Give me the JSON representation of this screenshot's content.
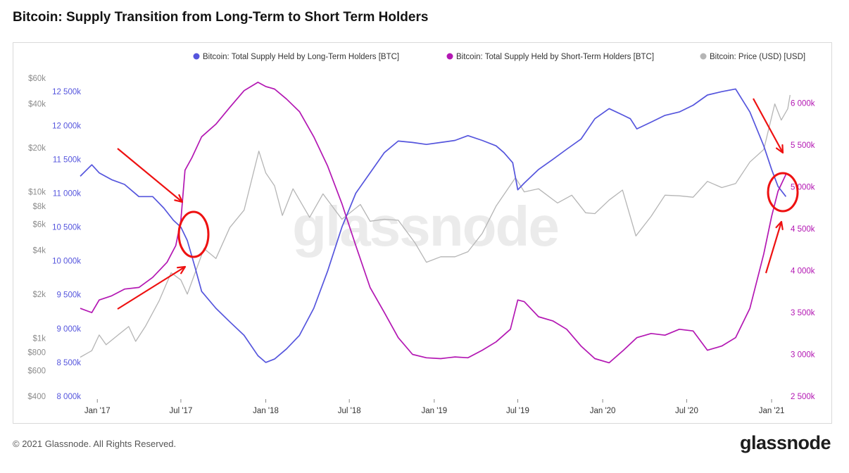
{
  "title": "Bitcoin: Supply Transition from Long-Term to Short Term Holders",
  "footer": {
    "copyright": "© 2021 Glassnode. All Rights Reserved.",
    "brand": "glassnode",
    "watermark": "glassnode"
  },
  "colors": {
    "lth": "#5555dd",
    "sth": "#b317b3",
    "price": "#b5b5b5",
    "annotation": "#ee1111"
  },
  "chart_data": {
    "type": "line",
    "x_ticks": [
      "Jan '17",
      "Jul '17",
      "Jan '18",
      "Jul '18",
      "Jan '19",
      "Jul '19",
      "Jan '20",
      "Jul '20",
      "Jan '21"
    ],
    "xlim": [
      "2016-11-25",
      "2021-02-05"
    ],
    "legend_position": "top-right",
    "grid": false,
    "axes": {
      "price": {
        "side": "left-outer",
        "scale": "log",
        "range": [
          400,
          60000
        ],
        "ticks": [
          400,
          600,
          800,
          1000,
          2000,
          4000,
          6000,
          8000,
          10000,
          20000,
          40000,
          60000
        ],
        "tick_labels": [
          "$400",
          "$600",
          "$800",
          "$1k",
          "$2k",
          "$4k",
          "$6k",
          "$8k",
          "$10k",
          "$20k",
          "$40k",
          "$60k"
        ]
      },
      "lth": {
        "side": "left-inner",
        "scale": "linear",
        "range": [
          8000000,
          12700000
        ],
        "ticks": [
          8000000,
          8500000,
          9000000,
          9500000,
          10000000,
          10500000,
          11000000,
          11500000,
          12000000,
          12500000
        ],
        "tick_labels": [
          "8 000k",
          "8 500k",
          "9 000k",
          "9 500k",
          "10 000k",
          "10 500k",
          "11 000k",
          "11 500k",
          "12 000k",
          "12 500k"
        ]
      },
      "sth": {
        "side": "right",
        "scale": "linear",
        "range": [
          2500000,
          6300000
        ],
        "ticks": [
          2500000,
          3000000,
          3500000,
          4000000,
          4500000,
          5000000,
          5500000,
          6000000
        ],
        "tick_labels": [
          "2 500k",
          "3 000k",
          "3 500k",
          "4 000k",
          "4 500k",
          "5 000k",
          "5 500k",
          "6 000k"
        ]
      }
    },
    "series": [
      {
        "name": "Bitcoin: Total Supply Held by Long-Term Holders [BTC]",
        "axis": "lth",
        "points": [
          [
            "2016-11-25",
            11250000
          ],
          [
            "2016-12-20",
            11420000
          ],
          [
            "2017-01-05",
            11300000
          ],
          [
            "2017-02-01",
            11200000
          ],
          [
            "2017-03-01",
            11130000
          ],
          [
            "2017-04-01",
            10950000
          ],
          [
            "2017-05-01",
            10950000
          ],
          [
            "2017-05-25",
            10780000
          ],
          [
            "2017-06-15",
            10600000
          ],
          [
            "2017-07-01",
            10500000
          ],
          [
            "2017-07-15",
            10300000
          ],
          [
            "2017-08-01",
            9900000
          ],
          [
            "2017-08-15",
            9550000
          ],
          [
            "2017-09-15",
            9300000
          ],
          [
            "2017-10-15",
            9100000
          ],
          [
            "2017-11-15",
            8900000
          ],
          [
            "2017-12-15",
            8600000
          ],
          [
            "2018-01-01",
            8500000
          ],
          [
            "2018-01-20",
            8550000
          ],
          [
            "2018-02-15",
            8700000
          ],
          [
            "2018-03-15",
            8900000
          ],
          [
            "2018-04-15",
            9300000
          ],
          [
            "2018-05-15",
            9850000
          ],
          [
            "2018-06-15",
            10500000
          ],
          [
            "2018-07-15",
            11000000
          ],
          [
            "2018-08-15",
            11300000
          ],
          [
            "2018-09-15",
            11600000
          ],
          [
            "2018-10-15",
            11770000
          ],
          [
            "2018-11-15",
            11750000
          ],
          [
            "2018-12-15",
            11720000
          ],
          [
            "2019-01-15",
            11750000
          ],
          [
            "2019-02-15",
            11780000
          ],
          [
            "2019-03-15",
            11850000
          ],
          [
            "2019-04-15",
            11780000
          ],
          [
            "2019-05-15",
            11700000
          ],
          [
            "2019-06-01",
            11600000
          ],
          [
            "2019-06-20",
            11450000
          ],
          [
            "2019-07-01",
            11050000
          ],
          [
            "2019-07-15",
            11150000
          ],
          [
            "2019-08-15",
            11350000
          ],
          [
            "2019-09-15",
            11500000
          ],
          [
            "2019-10-15",
            11650000
          ],
          [
            "2019-11-15",
            11800000
          ],
          [
            "2019-12-15",
            12100000
          ],
          [
            "2020-01-15",
            12250000
          ],
          [
            "2020-02-15",
            12150000
          ],
          [
            "2020-03-01",
            12100000
          ],
          [
            "2020-03-15",
            11950000
          ],
          [
            "2020-04-15",
            12050000
          ],
          [
            "2020-05-15",
            12150000
          ],
          [
            "2020-06-15",
            12200000
          ],
          [
            "2020-07-15",
            12300000
          ],
          [
            "2020-08-15",
            12450000
          ],
          [
            "2020-09-15",
            12500000
          ],
          [
            "2020-10-15",
            12540000
          ],
          [
            "2020-11-15",
            12200000
          ],
          [
            "2020-12-15",
            11700000
          ],
          [
            "2021-01-01",
            11350000
          ],
          [
            "2021-01-15",
            11100000
          ],
          [
            "2021-02-01",
            10950000
          ]
        ]
      },
      {
        "name": "Bitcoin: Total Supply Held by Short-Term Holders [BTC]",
        "axis": "sth",
        "points": [
          [
            "2016-11-25",
            3550000
          ],
          [
            "2016-12-20",
            3500000
          ],
          [
            "2017-01-05",
            3650000
          ],
          [
            "2017-02-01",
            3700000
          ],
          [
            "2017-03-01",
            3780000
          ],
          [
            "2017-04-01",
            3800000
          ],
          [
            "2017-05-01",
            3920000
          ],
          [
            "2017-06-01",
            4100000
          ],
          [
            "2017-06-20",
            4300000
          ],
          [
            "2017-07-01",
            4600000
          ],
          [
            "2017-07-10",
            5200000
          ],
          [
            "2017-07-25",
            5350000
          ],
          [
            "2017-08-15",
            5600000
          ],
          [
            "2017-09-15",
            5750000
          ],
          [
            "2017-10-15",
            5950000
          ],
          [
            "2017-11-15",
            6150000
          ],
          [
            "2017-12-15",
            6250000
          ],
          [
            "2018-01-01",
            6200000
          ],
          [
            "2018-01-20",
            6170000
          ],
          [
            "2018-02-15",
            6050000
          ],
          [
            "2018-03-15",
            5900000
          ],
          [
            "2018-04-15",
            5600000
          ],
          [
            "2018-05-15",
            5250000
          ],
          [
            "2018-06-15",
            4800000
          ],
          [
            "2018-07-15",
            4300000
          ],
          [
            "2018-08-15",
            3800000
          ],
          [
            "2018-09-15",
            3500000
          ],
          [
            "2018-10-15",
            3200000
          ],
          [
            "2018-11-15",
            3000000
          ],
          [
            "2018-12-15",
            2960000
          ],
          [
            "2019-01-15",
            2950000
          ],
          [
            "2019-02-15",
            2970000
          ],
          [
            "2019-03-15",
            2960000
          ],
          [
            "2019-04-15",
            3050000
          ],
          [
            "2019-05-15",
            3150000
          ],
          [
            "2019-06-15",
            3300000
          ],
          [
            "2019-07-01",
            3650000
          ],
          [
            "2019-07-15",
            3630000
          ],
          [
            "2019-08-15",
            3450000
          ],
          [
            "2019-09-15",
            3400000
          ],
          [
            "2019-10-15",
            3300000
          ],
          [
            "2019-11-15",
            3100000
          ],
          [
            "2019-12-15",
            2950000
          ],
          [
            "2020-01-15",
            2900000
          ],
          [
            "2020-02-15",
            3050000
          ],
          [
            "2020-03-15",
            3200000
          ],
          [
            "2020-04-15",
            3250000
          ],
          [
            "2020-05-15",
            3230000
          ],
          [
            "2020-06-15",
            3300000
          ],
          [
            "2020-07-15",
            3280000
          ],
          [
            "2020-08-15",
            3050000
          ],
          [
            "2020-09-15",
            3100000
          ],
          [
            "2020-10-15",
            3200000
          ],
          [
            "2020-11-15",
            3550000
          ],
          [
            "2020-12-15",
            4200000
          ],
          [
            "2021-01-01",
            4650000
          ],
          [
            "2021-01-15",
            4950000
          ],
          [
            "2021-02-01",
            5150000
          ]
        ]
      },
      {
        "name": "Bitcoin: Price (USD) [USD]",
        "axis": "price",
        "points": [
          [
            "2016-11-25",
            740
          ],
          [
            "2016-12-20",
            820
          ],
          [
            "2017-01-05",
            1050
          ],
          [
            "2017-01-20",
            900
          ],
          [
            "2017-02-15",
            1050
          ],
          [
            "2017-03-10",
            1200
          ],
          [
            "2017-03-25",
            950
          ],
          [
            "2017-04-15",
            1200
          ],
          [
            "2017-05-15",
            1800
          ],
          [
            "2017-06-10",
            2800
          ],
          [
            "2017-07-01",
            2500
          ],
          [
            "2017-07-15",
            2000
          ],
          [
            "2017-08-01",
            2800
          ],
          [
            "2017-08-20",
            4100
          ],
          [
            "2017-09-15",
            3500
          ],
          [
            "2017-10-15",
            5700
          ],
          [
            "2017-11-15",
            7500
          ],
          [
            "2017-12-17",
            19000
          ],
          [
            "2018-01-01",
            13500
          ],
          [
            "2018-01-20",
            11000
          ],
          [
            "2018-02-06",
            6900
          ],
          [
            "2018-03-01",
            10500
          ],
          [
            "2018-04-06",
            6700
          ],
          [
            "2018-05-05",
            9700
          ],
          [
            "2018-06-15",
            6500
          ],
          [
            "2018-07-25",
            8200
          ],
          [
            "2018-08-15",
            6300
          ],
          [
            "2018-09-15",
            6500
          ],
          [
            "2018-10-15",
            6400
          ],
          [
            "2018-11-20",
            4500
          ],
          [
            "2018-12-15",
            3300
          ],
          [
            "2019-01-15",
            3600
          ],
          [
            "2019-02-15",
            3600
          ],
          [
            "2019-03-15",
            3900
          ],
          [
            "2019-04-15",
            5200
          ],
          [
            "2019-05-15",
            8000
          ],
          [
            "2019-06-26",
            12500
          ],
          [
            "2019-07-15",
            10000
          ],
          [
            "2019-08-15",
            10500
          ],
          [
            "2019-09-25",
            8400
          ],
          [
            "2019-10-26",
            9500
          ],
          [
            "2019-11-25",
            7200
          ],
          [
            "2019-12-15",
            7100
          ],
          [
            "2020-01-15",
            8800
          ],
          [
            "2020-02-13",
            10300
          ],
          [
            "2020-03-13",
            5000
          ],
          [
            "2020-04-15",
            6800
          ],
          [
            "2020-05-15",
            9500
          ],
          [
            "2020-06-15",
            9400
          ],
          [
            "2020-07-15",
            9200
          ],
          [
            "2020-08-15",
            11800
          ],
          [
            "2020-09-15",
            10700
          ],
          [
            "2020-10-15",
            11400
          ],
          [
            "2020-11-15",
            16000
          ],
          [
            "2020-12-15",
            19500
          ],
          [
            "2021-01-08",
            40000
          ],
          [
            "2021-01-22",
            31000
          ],
          [
            "2021-02-05",
            37000
          ],
          [
            "2021-02-10",
            46000
          ]
        ]
      }
    ]
  }
}
